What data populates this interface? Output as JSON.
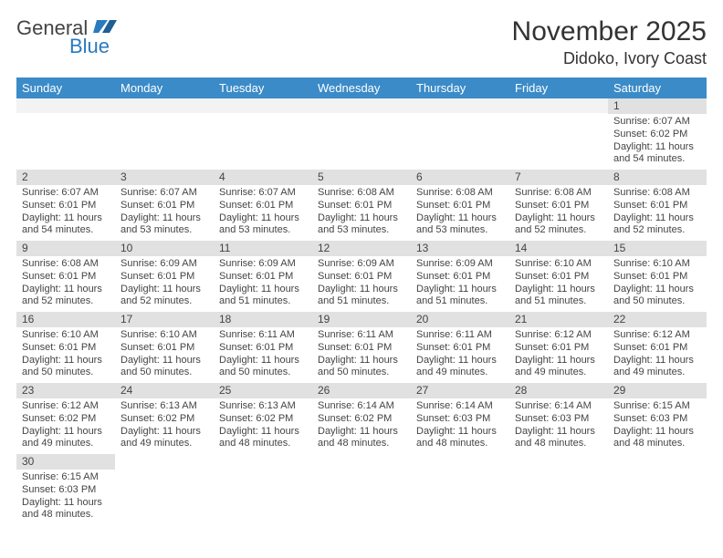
{
  "logo": {
    "part1": "General",
    "part2": "Blue"
  },
  "header": {
    "month_title": "November 2025",
    "location": "Didoko, Ivory Coast"
  },
  "colors": {
    "header_bg": "#3b8bc8",
    "header_text": "#ffffff",
    "daynum_bg": "#e1e1e1",
    "empty_bg": "#f3f3f3",
    "text": "#444444",
    "logo_blue": "#2a7abf"
  },
  "weekdays": [
    "Sunday",
    "Monday",
    "Tuesday",
    "Wednesday",
    "Thursday",
    "Friday",
    "Saturday"
  ],
  "weeks": [
    [
      null,
      null,
      null,
      null,
      null,
      null,
      {
        "d": "1",
        "rise": "Sunrise: 6:07 AM",
        "set": "Sunset: 6:02 PM",
        "day": "Daylight: 11 hours and 54 minutes."
      }
    ],
    [
      {
        "d": "2",
        "rise": "Sunrise: 6:07 AM",
        "set": "Sunset: 6:01 PM",
        "day": "Daylight: 11 hours and 54 minutes."
      },
      {
        "d": "3",
        "rise": "Sunrise: 6:07 AM",
        "set": "Sunset: 6:01 PM",
        "day": "Daylight: 11 hours and 53 minutes."
      },
      {
        "d": "4",
        "rise": "Sunrise: 6:07 AM",
        "set": "Sunset: 6:01 PM",
        "day": "Daylight: 11 hours and 53 minutes."
      },
      {
        "d": "5",
        "rise": "Sunrise: 6:08 AM",
        "set": "Sunset: 6:01 PM",
        "day": "Daylight: 11 hours and 53 minutes."
      },
      {
        "d": "6",
        "rise": "Sunrise: 6:08 AM",
        "set": "Sunset: 6:01 PM",
        "day": "Daylight: 11 hours and 53 minutes."
      },
      {
        "d": "7",
        "rise": "Sunrise: 6:08 AM",
        "set": "Sunset: 6:01 PM",
        "day": "Daylight: 11 hours and 52 minutes."
      },
      {
        "d": "8",
        "rise": "Sunrise: 6:08 AM",
        "set": "Sunset: 6:01 PM",
        "day": "Daylight: 11 hours and 52 minutes."
      }
    ],
    [
      {
        "d": "9",
        "rise": "Sunrise: 6:08 AM",
        "set": "Sunset: 6:01 PM",
        "day": "Daylight: 11 hours and 52 minutes."
      },
      {
        "d": "10",
        "rise": "Sunrise: 6:09 AM",
        "set": "Sunset: 6:01 PM",
        "day": "Daylight: 11 hours and 52 minutes."
      },
      {
        "d": "11",
        "rise": "Sunrise: 6:09 AM",
        "set": "Sunset: 6:01 PM",
        "day": "Daylight: 11 hours and 51 minutes."
      },
      {
        "d": "12",
        "rise": "Sunrise: 6:09 AM",
        "set": "Sunset: 6:01 PM",
        "day": "Daylight: 11 hours and 51 minutes."
      },
      {
        "d": "13",
        "rise": "Sunrise: 6:09 AM",
        "set": "Sunset: 6:01 PM",
        "day": "Daylight: 11 hours and 51 minutes."
      },
      {
        "d": "14",
        "rise": "Sunrise: 6:10 AM",
        "set": "Sunset: 6:01 PM",
        "day": "Daylight: 11 hours and 51 minutes."
      },
      {
        "d": "15",
        "rise": "Sunrise: 6:10 AM",
        "set": "Sunset: 6:01 PM",
        "day": "Daylight: 11 hours and 50 minutes."
      }
    ],
    [
      {
        "d": "16",
        "rise": "Sunrise: 6:10 AM",
        "set": "Sunset: 6:01 PM",
        "day": "Daylight: 11 hours and 50 minutes."
      },
      {
        "d": "17",
        "rise": "Sunrise: 6:10 AM",
        "set": "Sunset: 6:01 PM",
        "day": "Daylight: 11 hours and 50 minutes."
      },
      {
        "d": "18",
        "rise": "Sunrise: 6:11 AM",
        "set": "Sunset: 6:01 PM",
        "day": "Daylight: 11 hours and 50 minutes."
      },
      {
        "d": "19",
        "rise": "Sunrise: 6:11 AM",
        "set": "Sunset: 6:01 PM",
        "day": "Daylight: 11 hours and 50 minutes."
      },
      {
        "d": "20",
        "rise": "Sunrise: 6:11 AM",
        "set": "Sunset: 6:01 PM",
        "day": "Daylight: 11 hours and 49 minutes."
      },
      {
        "d": "21",
        "rise": "Sunrise: 6:12 AM",
        "set": "Sunset: 6:01 PM",
        "day": "Daylight: 11 hours and 49 minutes."
      },
      {
        "d": "22",
        "rise": "Sunrise: 6:12 AM",
        "set": "Sunset: 6:01 PM",
        "day": "Daylight: 11 hours and 49 minutes."
      }
    ],
    [
      {
        "d": "23",
        "rise": "Sunrise: 6:12 AM",
        "set": "Sunset: 6:02 PM",
        "day": "Daylight: 11 hours and 49 minutes."
      },
      {
        "d": "24",
        "rise": "Sunrise: 6:13 AM",
        "set": "Sunset: 6:02 PM",
        "day": "Daylight: 11 hours and 49 minutes."
      },
      {
        "d": "25",
        "rise": "Sunrise: 6:13 AM",
        "set": "Sunset: 6:02 PM",
        "day": "Daylight: 11 hours and 48 minutes."
      },
      {
        "d": "26",
        "rise": "Sunrise: 6:14 AM",
        "set": "Sunset: 6:02 PM",
        "day": "Daylight: 11 hours and 48 minutes."
      },
      {
        "d": "27",
        "rise": "Sunrise: 6:14 AM",
        "set": "Sunset: 6:03 PM",
        "day": "Daylight: 11 hours and 48 minutes."
      },
      {
        "d": "28",
        "rise": "Sunrise: 6:14 AM",
        "set": "Sunset: 6:03 PM",
        "day": "Daylight: 11 hours and 48 minutes."
      },
      {
        "d": "29",
        "rise": "Sunrise: 6:15 AM",
        "set": "Sunset: 6:03 PM",
        "day": "Daylight: 11 hours and 48 minutes."
      }
    ],
    [
      {
        "d": "30",
        "rise": "Sunrise: 6:15 AM",
        "set": "Sunset: 6:03 PM",
        "day": "Daylight: 11 hours and 48 minutes."
      },
      null,
      null,
      null,
      null,
      null,
      null
    ]
  ]
}
